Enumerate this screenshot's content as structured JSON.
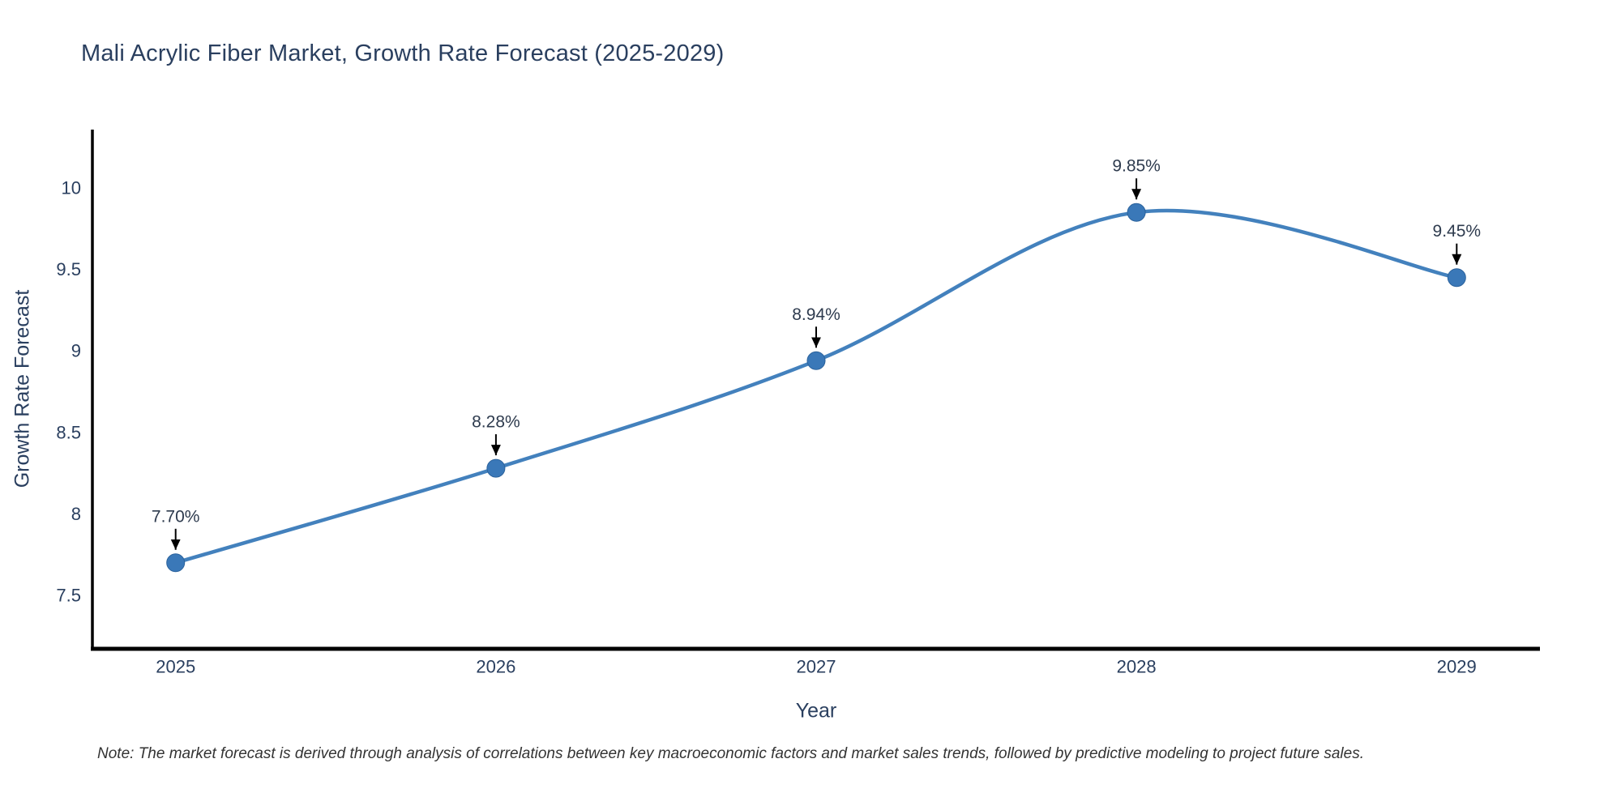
{
  "note": "Note: The market forecast is derived through analysis of correlations between key macroeconomic factors and market sales trends, followed by predictive modeling to project future sales.",
  "chart_data": {
    "type": "line",
    "title": "Mali Acrylic Fiber Market, Growth Rate Forecast (2025-2029)",
    "x": [
      2025,
      2026,
      2027,
      2028,
      2029
    ],
    "series": [
      {
        "name": "Growth Rate Forecast",
        "values": [
          7.7,
          8.28,
          8.94,
          9.85,
          9.45
        ]
      }
    ],
    "point_labels": [
      "7.70%",
      "8.28%",
      "8.94%",
      "9.85%",
      "9.45%"
    ],
    "xlabel": "Year",
    "ylabel": "Growth Rate Forecast",
    "xticks": [
      "2025",
      "2026",
      "2027",
      "2028",
      "2029"
    ],
    "yticks": [
      7.5,
      8,
      8.5,
      9,
      9.5,
      10
    ],
    "xlim": [
      2024.74,
      2029.26
    ],
    "ylim": [
      7.177,
      10.358
    ],
    "grid": false,
    "legend": "none",
    "line_shape": "spline",
    "colors": {
      "line": "#4381bd",
      "marker": "#3a78b8",
      "marker_edge": "#2b629c",
      "axis": "#000000",
      "text": "#2a3f5f",
      "annotation": "#2e3b4e",
      "arrow": "#000000",
      "note": "#333333",
      "background": "#ffffff"
    }
  }
}
